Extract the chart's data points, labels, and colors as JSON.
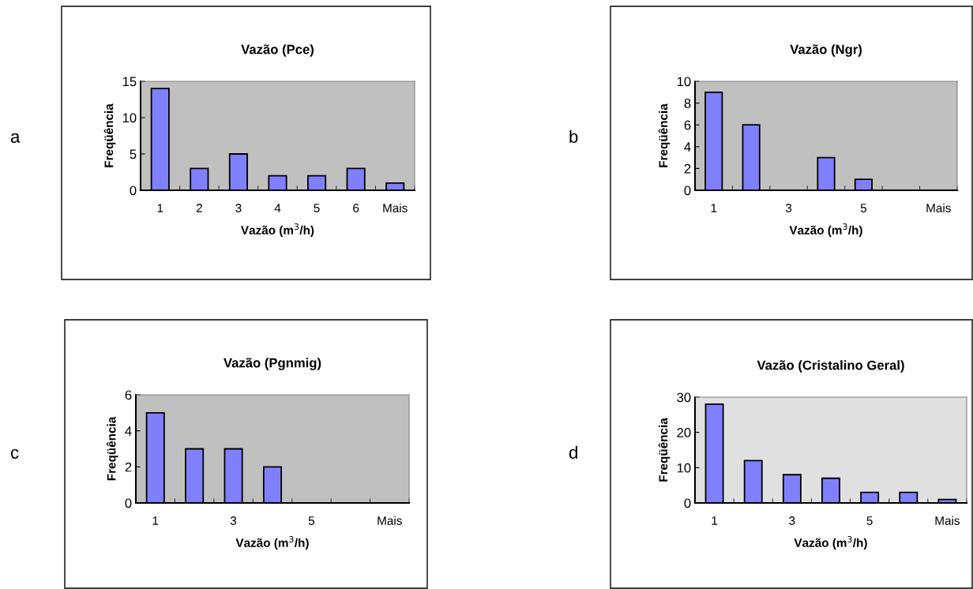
{
  "chart_data": [
    {
      "type": "bar",
      "title": "Vazão (Pce)",
      "xlabel": "Vazão (m$^{3}$/h)",
      "ylabel": "Freqüência",
      "categories": [
        "1",
        "2",
        "3",
        "4",
        "5",
        "6",
        "Mais"
      ],
      "values": [
        14,
        3,
        5,
        2,
        2,
        3,
        1
      ],
      "color": "#8080ff",
      "ylim": [
        0,
        15
      ],
      "yticks": [
        0,
        5,
        10,
        15
      ],
      "grid": false,
      "annotations": [
        "a"
      ]
    },
    {
      "type": "bar",
      "title": "Vazão (Ngr)",
      "xlabel": "Vazão (m$^{3}$/h)",
      "ylabel": "Freqüência",
      "categories": [
        "1",
        null,
        "3",
        null,
        "5",
        null,
        "Mais"
      ],
      "values": [
        9,
        6,
        0,
        3,
        1,
        0,
        0
      ],
      "color": "#8080ff",
      "ylim": [
        0,
        10
      ],
      "yticks": [
        0,
        2,
        4,
        6,
        8,
        10
      ],
      "grid": false,
      "annotations": [
        "b"
      ]
    },
    {
      "type": "bar",
      "title": "Vazão (Pgnmig)",
      "xlabel": "Vazão (m$^{3}$/h)",
      "ylabel": "Freqüência",
      "categories": [
        "1",
        null,
        "3",
        null,
        "5",
        null,
        "Mais"
      ],
      "values": [
        5,
        3,
        3,
        2,
        0,
        0,
        0
      ],
      "color": "#8080ff",
      "ylim": [
        0,
        6
      ],
      "yticks": [
        0,
        2,
        4,
        6
      ],
      "grid": false,
      "annotations": [
        "c"
      ]
    },
    {
      "type": "bar",
      "title": "Vazão (Cristalino Geral)",
      "xlabel": "Vazão (m$^{3}$/h)",
      "ylabel": "Freqüência",
      "categories": [
        "1",
        null,
        "3",
        null,
        "5",
        null,
        "Mais"
      ],
      "values": [
        28,
        12,
        8,
        7,
        3,
        3,
        1
      ],
      "color": "#8080ff",
      "ylim": [
        0,
        30
      ],
      "yticks": [
        0,
        10,
        20,
        30
      ],
      "grid": false,
      "annotations": [
        "d"
      ]
    }
  ]
}
